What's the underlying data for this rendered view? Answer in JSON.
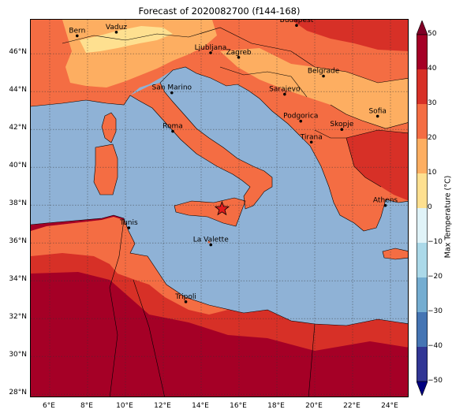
{
  "title": "Forecast of 2020082700 (f144-168)",
  "colorbar": {
    "label": "Max Temperature (°C)",
    "ticks": [
      "50",
      "40",
      "30",
      "20",
      "10",
      "0",
      "−10",
      "−20",
      "−30",
      "−40",
      "−50"
    ],
    "tick_values": [
      50,
      40,
      30,
      20,
      10,
      0,
      -10,
      -20,
      -30,
      -40,
      -50
    ],
    "colors": {
      "b40_50": "#a50026",
      "b30_40": "#d73027",
      "b20_30": "#f46d43",
      "b10_20": "#fdae61",
      "b0_10": "#fee090",
      "bm10_0": "#e0f3f8",
      "bm20_m10": "#abd9e9",
      "bm30_m20": "#74add1",
      "bm40_m30": "#4575b4",
      "bm50_m40": "#313695",
      "over": "#800026",
      "under": "#000080"
    }
  },
  "axes": {
    "lat_labels": [
      "46°N",
      "44°N",
      "42°N",
      "40°N",
      "38°N",
      "36°N",
      "34°N",
      "32°N",
      "30°N",
      "28°N"
    ],
    "lon_labels": [
      "6°E",
      "8°E",
      "10°E",
      "12°E",
      "14°E",
      "16°E",
      "18°E",
      "20°E",
      "22°E",
      "24°E"
    ]
  },
  "map": {
    "sea_color": "#8fb2d6",
    "extent": {
      "lon_min": 5,
      "lon_max": 25,
      "lat_min": 27.8,
      "lat_max": 47.8
    },
    "marker": {
      "lon": 15.1,
      "lat": 37.8,
      "color": "#e31a1c"
    }
  },
  "cities": [
    {
      "name": "Bern",
      "lon": 7.45,
      "lat": 46.95
    },
    {
      "name": "Vaduz",
      "lon": 9.52,
      "lat": 47.14
    },
    {
      "name": "Budapest",
      "lon": 19.04,
      "lat": 47.5
    },
    {
      "name": "Ljubljana",
      "lon": 14.5,
      "lat": 46.05
    },
    {
      "name": "Zagreb",
      "lon": 15.98,
      "lat": 45.81
    },
    {
      "name": "Belgrade",
      "lon": 20.46,
      "lat": 44.82
    },
    {
      "name": "San Marino",
      "lon": 12.45,
      "lat": 43.94
    },
    {
      "name": "Sarajevo",
      "lon": 18.41,
      "lat": 43.86
    },
    {
      "name": "Sofia",
      "lon": 23.32,
      "lat": 42.7
    },
    {
      "name": "Podgorica",
      "lon": 19.26,
      "lat": 42.44
    },
    {
      "name": "Skopje",
      "lon": 21.43,
      "lat": 42.0
    },
    {
      "name": "Roma",
      "lon": 12.5,
      "lat": 41.9
    },
    {
      "name": "Tirana",
      "lon": 19.82,
      "lat": 41.33
    },
    {
      "name": "Athens",
      "lon": 23.73,
      "lat": 37.98
    },
    {
      "name": "Tunis",
      "lon": 10.18,
      "lat": 36.8
    },
    {
      "name": "La Valette",
      "lon": 14.51,
      "lat": 35.9
    },
    {
      "name": "Tripoli",
      "lon": 13.19,
      "lat": 32.89
    }
  ]
}
